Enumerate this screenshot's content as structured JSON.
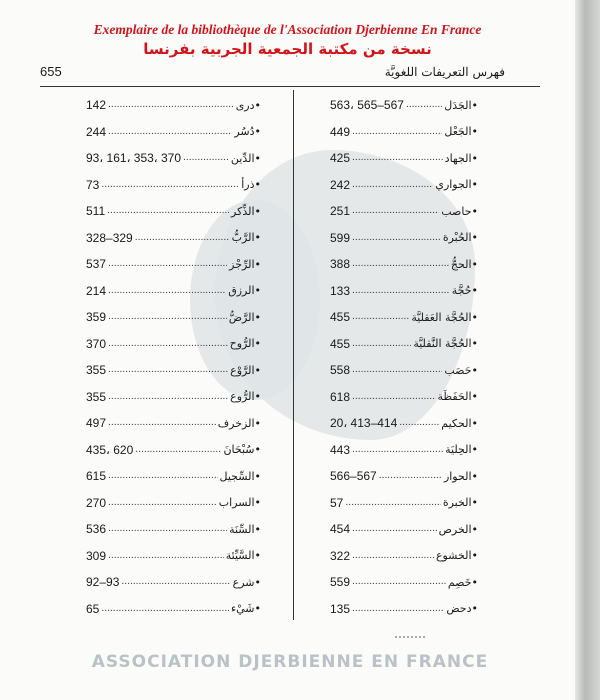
{
  "stamp": {
    "french": "Exemplaire de la bibliothèque de l'Association Djerbienne En France",
    "arabic": "نسخة من مكتبة الجمعية الجربية بفرنسا",
    "color": "#d2141a"
  },
  "watermark": "ASSOCIATION DJERBIENNE EN FRANCE",
  "header": {
    "page_number": "655",
    "title": "فهرس التعريفات اللغويَّة"
  },
  "right_column": [
    {
      "term": "•الجَدَل",
      "ref": "563، 565–567"
    },
    {
      "term": "•الجَعْل",
      "ref": "449"
    },
    {
      "term": "•الجهاد",
      "ref": "425"
    },
    {
      "term": "•الجواري",
      "ref": "242"
    },
    {
      "term": "•حاصب",
      "ref": "251"
    },
    {
      "term": "•الحُبْرة",
      "ref": "599"
    },
    {
      "term": "•الحجُّ",
      "ref": "388"
    },
    {
      "term": "•حُجَّة",
      "ref": "133"
    },
    {
      "term": "•الحُجَّة العَقليَّة",
      "ref": "455"
    },
    {
      "term": "•الحُجَّة النَّقليَّة",
      "ref": "455"
    },
    {
      "term": "•حَصَب",
      "ref": "558"
    },
    {
      "term": "•الحَفَظَة",
      "ref": "618"
    },
    {
      "term": "•الحكيم",
      "ref": "20، 413–414"
    },
    {
      "term": "•الحِليَة",
      "ref": "443"
    },
    {
      "term": "•الحوار",
      "ref": "566–567"
    },
    {
      "term": "•الخبرة",
      "ref": "57"
    },
    {
      "term": "•الخرص",
      "ref": "454"
    },
    {
      "term": "•الخشوع",
      "ref": "322"
    },
    {
      "term": "•خَصِم",
      "ref": "559"
    },
    {
      "term": "•دحض",
      "ref": "135"
    }
  ],
  "left_column": [
    {
      "term": "•درى",
      "ref": "142"
    },
    {
      "term": "•دُسُر",
      "ref": "244"
    },
    {
      "term": "•الدِّين",
      "ref": "93، 161، 353، 370"
    },
    {
      "term": "•ذرأ",
      "ref": "73"
    },
    {
      "term": "•الذِّكر",
      "ref": "511"
    },
    {
      "term": "•الرَّبُّ",
      "ref": "328–329"
    },
    {
      "term": "•الرِّجْز",
      "ref": "537"
    },
    {
      "term": "•الرزق",
      "ref": "214"
    },
    {
      "term": "•الرَّضُّ",
      "ref": "359"
    },
    {
      "term": "•الرُّوح",
      "ref": "370"
    },
    {
      "term": "•الرَّوْع",
      "ref": "355"
    },
    {
      "term": "•الرُّوع",
      "ref": "355"
    },
    {
      "term": "•الزخرف",
      "ref": "497"
    },
    {
      "term": "•سُبْحَانَ",
      "ref": "435، 620"
    },
    {
      "term": "•السِّجيل",
      "ref": "615"
    },
    {
      "term": "•السراب",
      "ref": "270"
    },
    {
      "term": "•السِّنَة",
      "ref": "536"
    },
    {
      "term": "•السَّيِّئة",
      "ref": "309"
    },
    {
      "term": "•شرع",
      "ref": "92–93"
    },
    {
      "term": "•شَيْء",
      "ref": "65"
    }
  ]
}
